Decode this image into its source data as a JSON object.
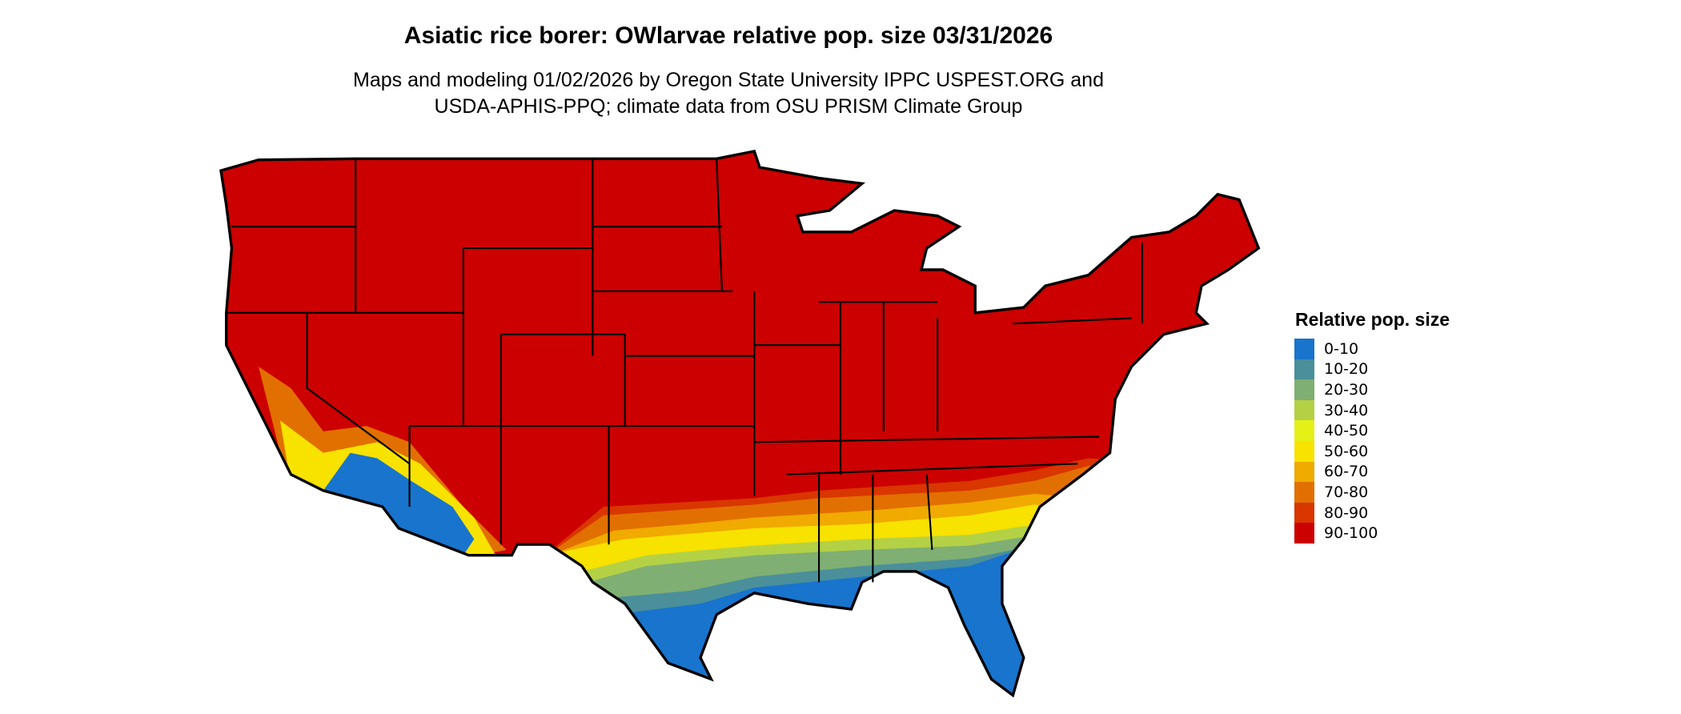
{
  "title": "Asiatic rice borer: OWlarvae relative pop. size 03/31/2026",
  "subtitle_lines": [
    "Maps and modeling 01/02/2026 by Oregon State University IPPC USPEST.ORG and",
    "USDA-APHIS-PPQ; climate data from OSU PRISM Climate Group"
  ],
  "legend": {
    "title": "Relative pop. size",
    "items": [
      {
        "label": "0-10",
        "color": "#1874CD"
      },
      {
        "label": "10-20",
        "color": "#4A8F9A"
      },
      {
        "label": "20-30",
        "color": "#7FAF73"
      },
      {
        "label": "30-40",
        "color": "#B4D145"
      },
      {
        "label": "40-50",
        "color": "#E5F016"
      },
      {
        "label": "50-60",
        "color": "#F7E200"
      },
      {
        "label": "60-70",
        "color": "#F0AA00"
      },
      {
        "label": "70-80",
        "color": "#E27000"
      },
      {
        "label": "80-90",
        "color": "#D93600"
      },
      {
        "label": "90-100",
        "color": "#CC0000"
      }
    ]
  }
}
